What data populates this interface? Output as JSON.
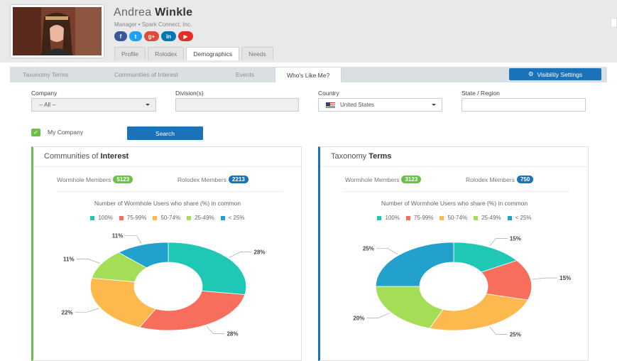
{
  "profile": {
    "first_name": "Andrea",
    "last_name": "Winkle",
    "subtitle": "Manager • Spark Connect, Inc.",
    "socials": [
      {
        "name": "facebook",
        "glyph": "f"
      },
      {
        "name": "twitter",
        "glyph": "t"
      },
      {
        "name": "google-plus",
        "glyph": "g+"
      },
      {
        "name": "linkedin",
        "glyph": "in"
      },
      {
        "name": "youtube",
        "glyph": "▶"
      }
    ],
    "tabs": [
      "Profile",
      "Rolodex",
      "Demographics",
      "Needs"
    ],
    "active_tab": "Demographics"
  },
  "subtabs": {
    "items": [
      "Taxonomy Terms",
      "Communities of Interest",
      "Events",
      "Who's Like Me?"
    ],
    "active": "Who's Like Me?",
    "visibility_button": "Visibility Settings"
  },
  "filters": {
    "company_label": "Company",
    "company_value": "-- All --",
    "division_label": "Division(s)",
    "division_value": "",
    "country_label": "Country",
    "country_value": "United States",
    "state_label": "State / Region",
    "state_value": "",
    "my_company_label": "My Company",
    "my_company_checked": true,
    "search_button": "Search"
  },
  "legend": [
    {
      "label": "100%",
      "color": "#1fc8b4"
    },
    {
      "label": "75-99%",
      "color": "#f76e5c"
    },
    {
      "label": "50-74%",
      "color": "#fdb94e"
    },
    {
      "label": "25-49%",
      "color": "#a4dd56"
    },
    {
      "label": "< 25%",
      "color": "#21a1cc"
    }
  ],
  "panels": [
    {
      "title_plain": "Communities of",
      "title_bold": "Interest",
      "wormhole_label": "Wormhole Members",
      "wormhole_count": "5123",
      "rolodex_label": "Rolodex Members",
      "rolodex_count": "2213",
      "question": "Number of Wormhole Users who share (%) in common"
    },
    {
      "title_plain": "Taxonomy",
      "title_bold": "Terms",
      "wormhole_label": "Wormhole Members",
      "wormhole_count": "3123",
      "rolodex_label": "Rolodex Members",
      "rolodex_count": "750",
      "question": "Number of Wormhole Users who share (%) in common"
    }
  ],
  "chart_data": [
    {
      "type": "pie",
      "title": "Communities of Interest",
      "categories": [
        "100%",
        "75-99%",
        "50-74%",
        "25-49%",
        "< 25%"
      ],
      "values": [
        28,
        28,
        22,
        11,
        11
      ],
      "labels": [
        "28%",
        "28%",
        "22%",
        "11%",
        "11%"
      ],
      "colors": [
        "#1fc8b4",
        "#f76e5c",
        "#fdb94e",
        "#a4dd56",
        "#21a1cc"
      ],
      "legend_position": "top"
    },
    {
      "type": "pie",
      "title": "Taxonomy Terms",
      "categories": [
        "100%",
        "75-99%",
        "50-74%",
        "25-49%",
        "< 25%"
      ],
      "values": [
        15,
        15,
        25,
        20,
        25
      ],
      "labels": [
        "15%",
        "15%",
        "25%",
        "20%",
        "25%"
      ],
      "colors": [
        "#1fc8b4",
        "#f76e5c",
        "#fdb94e",
        "#a4dd56",
        "#21a1cc"
      ],
      "legend_position": "top"
    }
  ]
}
